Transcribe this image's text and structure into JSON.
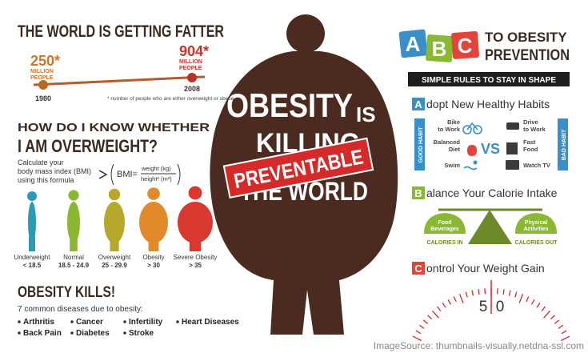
{
  "left": {
    "title": "THE WORLD IS GETTING FATTER",
    "timeline": {
      "start": {
        "figure": "250*",
        "line1": "MILLION",
        "line2": "PEOPLE",
        "year": "1980"
      },
      "end": {
        "figure": "904*",
        "line1": "MILLION",
        "line2": "PEOPLE",
        "year": "2008"
      },
      "footnote": "* number of people who are either overweight or obese"
    },
    "bmi": {
      "heading1": "HOW DO I KNOW WHETHER",
      "heading2": "I AM OVERWEIGHT?",
      "intro": [
        "Calculate your",
        "body mass index (BMI)",
        "using this formula"
      ],
      "formula_left": "BMI=",
      "numerator": "weight (kg)",
      "denominator": "height² (m²)",
      "figures": [
        {
          "label": "Underweight",
          "range": "< 18.5"
        },
        {
          "label": "Normal",
          "range": "18.5 - 24.9"
        },
        {
          "label": "Overweight",
          "range": "25 - 29.9"
        },
        {
          "label": "Obesity",
          "range": "> 30"
        },
        {
          "label": "Severe Obesity",
          "range": "> 35"
        }
      ]
    },
    "kills": {
      "title": "OBESITY KILLS!",
      "subtitle": "7 common diseases due to obesity:",
      "diseases": [
        "Arthritis",
        "Back Pain",
        "Cancer",
        "Diabetes",
        "Infertility",
        "Stroke",
        "Heart Diseases"
      ]
    }
  },
  "center": {
    "line1": "OBESITY",
    "line1b": "IS",
    "line2": "KILLING",
    "line3": "THE WORLD",
    "stamp": "PREVENTABLE"
  },
  "right": {
    "letters": [
      "A",
      "B",
      "C"
    ],
    "title1": "TO OBESITY",
    "title2": "PREVENTION",
    "banner": "SIMPLE RULES TO STAY IN SHAPE",
    "sections": [
      {
        "letter": "A",
        "heading": "dopt New Healthy Habits"
      },
      {
        "letter": "B",
        "heading": "alance Your Calorie Intake"
      },
      {
        "letter": "C",
        "heading": "ontrol Your Weight Gain"
      }
    ],
    "habits": {
      "good_label": "GOOD HABIT",
      "bad_label": "BAD HABIT",
      "vs": "VS",
      "good": [
        [
          "Bike",
          "to Work"
        ],
        [
          "Balanced",
          "Diet"
        ],
        [
          "Swim"
        ]
      ],
      "bad": [
        [
          "Drive",
          "to Work"
        ],
        [
          "Fast",
          "Food"
        ],
        [
          "Watch TV"
        ]
      ]
    },
    "balance": {
      "left": {
        "line1": "Food",
        "line2": "Beverages",
        "caption": "CALORIES IN"
      },
      "right": {
        "line1": "Physical",
        "line2": "Activities",
        "caption": "CALORIES OUT"
      }
    },
    "gauge": {
      "digit1": "5",
      "digit2": "0"
    }
  },
  "footer": {
    "source": "ImageSource: thumbnails-visually.netdna-ssl.com"
  }
}
